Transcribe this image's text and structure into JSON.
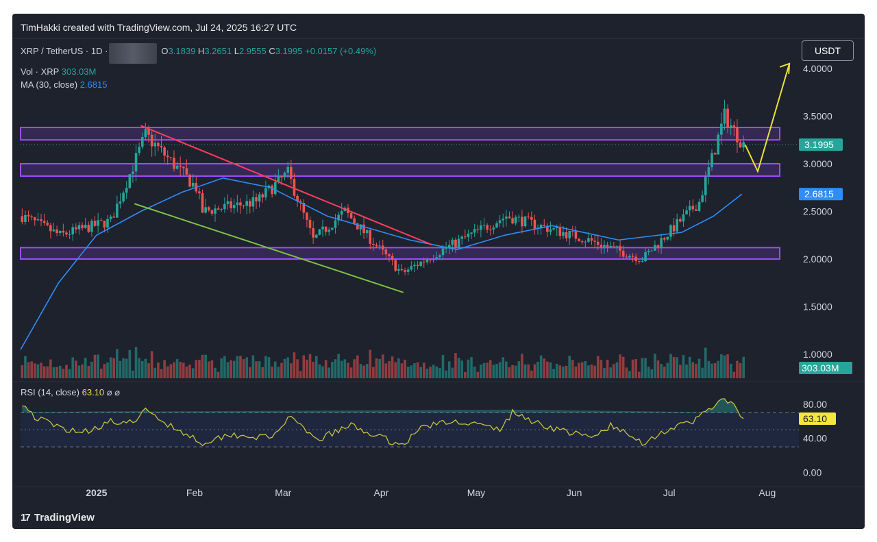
{
  "header": {
    "credit": "TimHakki created with TradingView.com, Jul 24, 2025 16:27 UTC"
  },
  "legend": {
    "symbol": "XRP / TetherUS · 1D ·",
    "open_label": "O",
    "open": "3.1839",
    "high_label": "H",
    "high": "3.2651",
    "low_label": "L",
    "low": "2.9555",
    "close_label": "C",
    "close": "3.1995",
    "change": "+0.0157 (+0.49%)",
    "vol_label": "Vol · XRP",
    "vol_value": "303.03M",
    "ma_label": "MA (30, close)",
    "ma_value": "2.6815"
  },
  "currency_button": "USDT",
  "rsi_legend": {
    "label": "RSI (14, close)",
    "value": "63.10",
    "icons": [
      "⌀",
      "⌀"
    ]
  },
  "brand": {
    "logo_icon": "17",
    "name": "TradingView"
  },
  "colors": {
    "background": "#1e222d",
    "up": "#26a69a",
    "down": "#ef5350",
    "ma": "#2f8df7",
    "zone": "#9c4dff",
    "resistance_line": "#ff3d5e",
    "support_line": "#7bc142",
    "projection": "#e8e23a",
    "rsi": "#c8c23a"
  },
  "chart_data": [
    {
      "type": "candlestick",
      "title": "XRP / TetherUS · 1D",
      "price_axis": {
        "ticks": [
          "4.0000",
          "3.5000",
          "3.0000",
          "2.5000",
          "2.0000",
          "1.5000",
          "1.0000"
        ],
        "ylim": [
          0.75,
          4.25
        ]
      },
      "time_axis": {
        "ticks": [
          "2025",
          "Feb",
          "Mar",
          "Apr",
          "May",
          "Jun",
          "Jul",
          "Aug"
        ],
        "range": [
          "2024-12-08",
          "2025-08-11"
        ]
      },
      "price_badges": [
        {
          "label": "3.1995",
          "value": 3.1995,
          "color": "#26a69a"
        },
        {
          "label": "2.6815",
          "value": 2.6815,
          "color": "#2f8df7"
        }
      ],
      "volume_badge": {
        "label": "303.03M",
        "color": "#26a69a"
      },
      "key_closes": [
        {
          "date": "2024-12-08",
          "value": 2.45
        },
        {
          "date": "2024-12-20",
          "value": 2.25
        },
        {
          "date": "2025-01-05",
          "value": 2.4
        },
        {
          "date": "2025-01-16",
          "value": 3.3
        },
        {
          "date": "2025-02-01",
          "value": 2.75
        },
        {
          "date": "2025-02-03",
          "value": 2.5
        },
        {
          "date": "2025-02-20",
          "value": 2.6
        },
        {
          "date": "2025-03-02",
          "value": 2.9
        },
        {
          "date": "2025-03-10",
          "value": 2.2
        },
        {
          "date": "2025-03-20",
          "value": 2.5
        },
        {
          "date": "2025-04-07",
          "value": 1.85
        },
        {
          "date": "2025-04-20",
          "value": 2.1
        },
        {
          "date": "2025-05-10",
          "value": 2.45
        },
        {
          "date": "2025-06-05",
          "value": 2.2
        },
        {
          "date": "2025-06-22",
          "value": 2.0
        },
        {
          "date": "2025-07-10",
          "value": 2.6
        },
        {
          "date": "2025-07-18",
          "value": 3.5
        },
        {
          "date": "2025-07-22",
          "value": 3.3
        },
        {
          "date": "2025-07-24",
          "value": 3.1995
        }
      ],
      "ma30": [
        {
          "date": "2024-12-08",
          "value": 1.05
        },
        {
          "date": "2024-12-20",
          "value": 1.75
        },
        {
          "date": "2025-01-01",
          "value": 2.25
        },
        {
          "date": "2025-01-15",
          "value": 2.5
        },
        {
          "date": "2025-01-28",
          "value": 2.7
        },
        {
          "date": "2025-02-10",
          "value": 2.85
        },
        {
          "date": "2025-02-25",
          "value": 2.75
        },
        {
          "date": "2025-03-15",
          "value": 2.45
        },
        {
          "date": "2025-04-10",
          "value": 2.2
        },
        {
          "date": "2025-04-25",
          "value": 2.1
        },
        {
          "date": "2025-05-10",
          "value": 2.25
        },
        {
          "date": "2025-05-25",
          "value": 2.35
        },
        {
          "date": "2025-06-15",
          "value": 2.2
        },
        {
          "date": "2025-07-05",
          "value": 2.28
        },
        {
          "date": "2025-07-15",
          "value": 2.45
        },
        {
          "date": "2025-07-24",
          "value": 2.6815
        }
      ],
      "zones": [
        {
          "from": 3.25,
          "to": 3.38
        },
        {
          "from": 2.87,
          "to": 3.0
        },
        {
          "from": 2.0,
          "to": 2.12
        }
      ],
      "trendlines": [
        {
          "name": "resistance",
          "from": {
            "date": "2025-01-15",
            "value": 3.4
          },
          "to": {
            "date": "2025-04-17",
            "value": 2.15
          }
        },
        {
          "name": "support",
          "from": {
            "date": "2025-01-13",
            "value": 2.58
          },
          "to": {
            "date": "2025-04-08",
            "value": 1.65
          }
        }
      ],
      "projection": [
        {
          "date": "2025-07-25",
          "value": 3.2
        },
        {
          "date": "2025-07-29",
          "value": 2.92
        },
        {
          "date": "2025-08-08",
          "value": 4.05
        }
      ]
    },
    {
      "type": "line",
      "title": "RSI (14, close)",
      "ticks": [
        "80.00",
        "40.00",
        "0.00"
      ],
      "ylim": [
        -10,
        100
      ],
      "bands": {
        "upper": 70,
        "middle": 50,
        "lower": 30
      },
      "last": 63.1,
      "values": [
        {
          "date": "2024-12-08",
          "value": 82
        },
        {
          "date": "2024-12-12",
          "value": 65
        },
        {
          "date": "2024-12-20",
          "value": 52
        },
        {
          "date": "2024-12-28",
          "value": 48
        },
        {
          "date": "2025-01-05",
          "value": 60
        },
        {
          "date": "2025-01-10",
          "value": 55
        },
        {
          "date": "2025-01-16",
          "value": 72
        },
        {
          "date": "2025-01-24",
          "value": 55
        },
        {
          "date": "2025-02-03",
          "value": 35
        },
        {
          "date": "2025-02-12",
          "value": 45
        },
        {
          "date": "2025-02-25",
          "value": 40
        },
        {
          "date": "2025-03-02",
          "value": 65
        },
        {
          "date": "2025-03-11",
          "value": 38
        },
        {
          "date": "2025-03-22",
          "value": 55
        },
        {
          "date": "2025-04-01",
          "value": 40
        },
        {
          "date": "2025-04-07",
          "value": 32
        },
        {
          "date": "2025-04-14",
          "value": 55
        },
        {
          "date": "2025-04-26",
          "value": 60
        },
        {
          "date": "2025-05-08",
          "value": 50
        },
        {
          "date": "2025-05-12",
          "value": 70
        },
        {
          "date": "2025-05-22",
          "value": 55
        },
        {
          "date": "2025-06-06",
          "value": 40
        },
        {
          "date": "2025-06-12",
          "value": 55
        },
        {
          "date": "2025-06-22",
          "value": 35
        },
        {
          "date": "2025-07-01",
          "value": 52
        },
        {
          "date": "2025-07-08",
          "value": 58
        },
        {
          "date": "2025-07-12",
          "value": 74
        },
        {
          "date": "2025-07-18",
          "value": 84
        },
        {
          "date": "2025-07-21",
          "value": 82
        },
        {
          "date": "2025-07-23",
          "value": 62
        },
        {
          "date": "2025-07-24",
          "value": 63.1
        }
      ]
    }
  ]
}
